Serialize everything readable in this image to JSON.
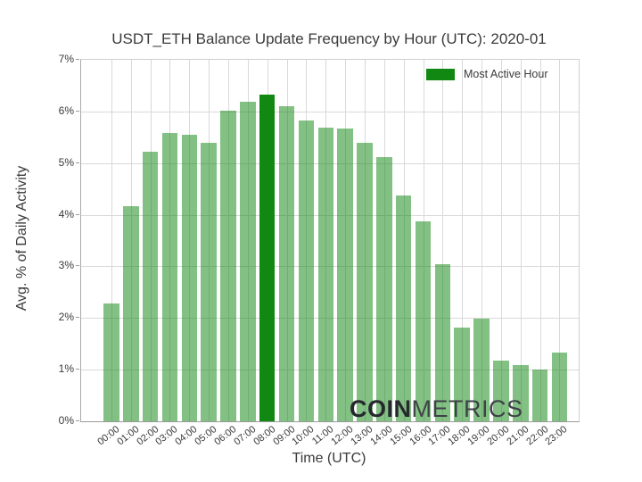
{
  "title": "USDT_ETH Balance Update Frequency by Hour (UTC): 2020-01",
  "watermark": {
    "bold": "COIN",
    "light": "METRICS"
  },
  "legend": {
    "label": "Most Active Hour"
  },
  "chart_data": {
    "type": "bar",
    "title": "USDT_ETH Balance Update Frequency by Hour (UTC): 2020-01",
    "xlabel": "Time (UTC)",
    "ylabel": "Avg. % of Daily Activity",
    "categories": [
      "00:00",
      "01:00",
      "02:00",
      "03:00",
      "04:00",
      "05:00",
      "06:00",
      "07:00",
      "08:00",
      "09:00",
      "10:00",
      "11:00",
      "12:00",
      "13:00",
      "14:00",
      "15:00",
      "16:00",
      "17:00",
      "18:00",
      "19:00",
      "20:00",
      "21:00",
      "22:00",
      "23:00"
    ],
    "values": [
      2.28,
      4.17,
      5.22,
      5.59,
      5.55,
      5.39,
      6.01,
      6.19,
      6.32,
      6.1,
      5.82,
      5.69,
      5.67,
      5.39,
      5.12,
      4.37,
      3.88,
      3.04,
      1.82,
      1.98,
      1.18,
      1.09,
      1.0,
      1.33
    ],
    "most_active_hour": "08:00",
    "highlight_index": 8,
    "ylim": [
      0,
      7
    ],
    "ytick_labels": [
      "0%",
      "1%",
      "2%",
      "3%",
      "4%",
      "5%",
      "6%",
      "7%"
    ],
    "grid": true,
    "legend_position": "upper-right",
    "colors": {
      "bar_light": "rgba(18,135,18,0.52)",
      "bar_highlight": "#118811",
      "grid": "#d9d9d9",
      "text": "#3a3a3a"
    }
  }
}
